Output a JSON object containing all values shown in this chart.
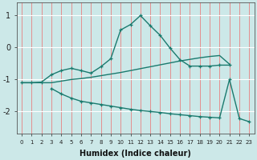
{
  "bg_color": "#cce8e8",
  "grid_color_h": "#ffffff",
  "grid_color_v": "#e88080",
  "line_color": "#1a7a6e",
  "line1_x": [
    0,
    1,
    2,
    3,
    4,
    5,
    6,
    7,
    8,
    9,
    10,
    11,
    12,
    13,
    14,
    15,
    16,
    17,
    18,
    19,
    20,
    21
  ],
  "line1_y": [
    -1.1,
    -1.1,
    -1.08,
    -0.85,
    -0.72,
    -0.65,
    -0.72,
    -0.8,
    -0.6,
    -0.35,
    0.55,
    0.72,
    1.0,
    0.68,
    0.38,
    -0.02,
    -0.38,
    -0.58,
    -0.58,
    -0.58,
    -0.55,
    -0.55
  ],
  "line2_x": [
    0,
    1,
    2,
    3,
    4,
    5,
    6,
    7,
    8,
    9,
    10,
    11,
    12,
    13,
    14,
    15,
    16,
    17,
    18,
    19,
    20,
    21
  ],
  "line2_y": [
    -1.1,
    -1.1,
    -1.1,
    -1.1,
    -1.05,
    -1.0,
    -0.97,
    -0.93,
    -0.88,
    -0.83,
    -0.78,
    -0.72,
    -0.66,
    -0.6,
    -0.54,
    -0.48,
    -0.42,
    -0.37,
    -0.32,
    -0.28,
    -0.25,
    -0.52
  ],
  "line3_x": [
    3,
    4,
    5,
    6,
    7,
    8,
    9,
    10,
    11,
    12,
    13,
    14,
    15,
    16,
    17,
    18,
    19,
    20,
    21,
    22,
    23
  ],
  "line3_y": [
    -1.28,
    -1.45,
    -1.58,
    -1.68,
    -1.73,
    -1.78,
    -1.83,
    -1.88,
    -1.93,
    -1.97,
    -2.0,
    -2.03,
    -2.07,
    -2.1,
    -2.13,
    -2.16,
    -2.18,
    -2.2,
    -1.0,
    -2.22,
    -2.32
  ],
  "xlabel": "Humidex (Indice chaleur)",
  "xlim": [
    -0.5,
    23.5
  ],
  "ylim": [
    -2.7,
    1.4
  ],
  "yticks": [
    -2,
    -1,
    0,
    1
  ],
  "xticks": [
    0,
    1,
    2,
    3,
    4,
    5,
    6,
    7,
    8,
    9,
    10,
    11,
    12,
    13,
    14,
    15,
    16,
    17,
    18,
    19,
    20,
    21,
    22,
    23
  ]
}
